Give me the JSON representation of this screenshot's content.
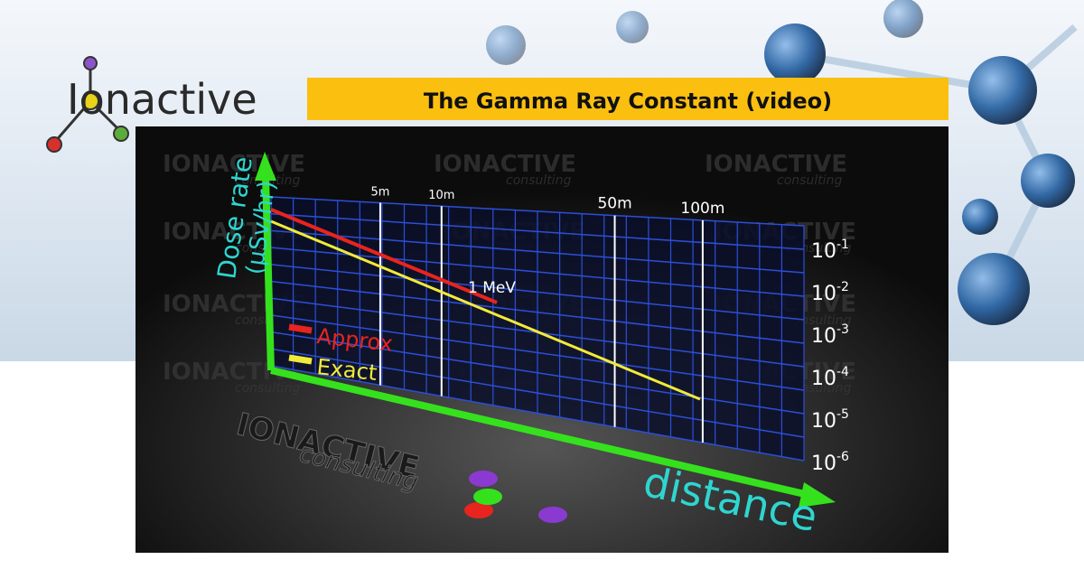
{
  "logo": {
    "text": "Ionactive"
  },
  "banner": {
    "title": "The Gamma Ray Constant (video)"
  },
  "graphic": {
    "y_axis_label": {
      "line1": "Dose rate",
      "line2": "(µSv/hr)"
    },
    "x_axis_label": "distance",
    "x_ticks": [
      "5m",
      "10m",
      "50m",
      "100m"
    ],
    "y_ticks": [
      {
        "base": "10",
        "exp": "-1"
      },
      {
        "base": "10",
        "exp": "-2"
      },
      {
        "base": "10",
        "exp": "-3"
      },
      {
        "base": "10",
        "exp": "-4"
      },
      {
        "base": "10",
        "exp": "-5"
      },
      {
        "base": "10",
        "exp": "-6"
      }
    ],
    "legend": [
      "Approx",
      "Exact"
    ],
    "annotation": "1 MeV",
    "watermark": {
      "name": "IONACTIVE",
      "sub": "consulting"
    }
  }
}
